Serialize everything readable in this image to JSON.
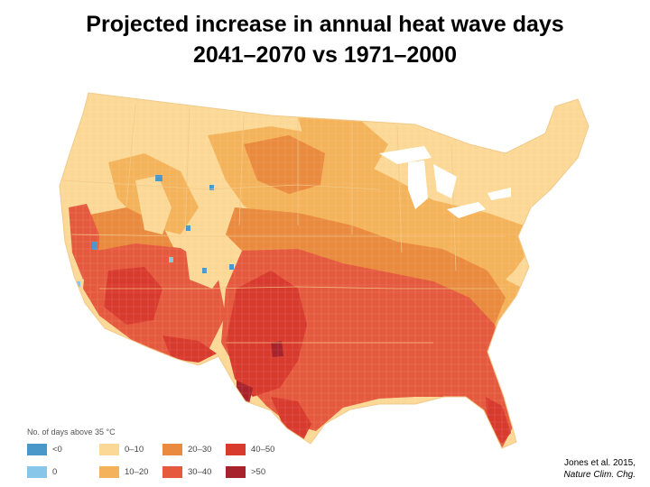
{
  "title": {
    "line1": "Projected increase in annual heat wave days",
    "line2": "2041–2070 vs 1971–2000"
  },
  "legend": {
    "title": "No. of days above 35 °C",
    "classes": [
      {
        "label": "<0",
        "color": "#4a97c9"
      },
      {
        "label": "0",
        "color": "#87c6e8"
      },
      {
        "label": "0–10",
        "color": "#fbd896"
      },
      {
        "label": "10–20",
        "color": "#f4b35a"
      },
      {
        "label": "20–30",
        "color": "#ea8a3e"
      },
      {
        "label": "30–40",
        "color": "#e55a3e"
      },
      {
        "label": "40–50",
        "color": "#d83a2e"
      },
      {
        "label": ">50",
        "color": "#a8222b"
      }
    ]
  },
  "credit": {
    "line1": "Jones et al. 2015,",
    "line2": "Nature Clim. Chg."
  },
  "colors": {
    "background": "#ffffff",
    "state_lines": "#f2c98a"
  }
}
